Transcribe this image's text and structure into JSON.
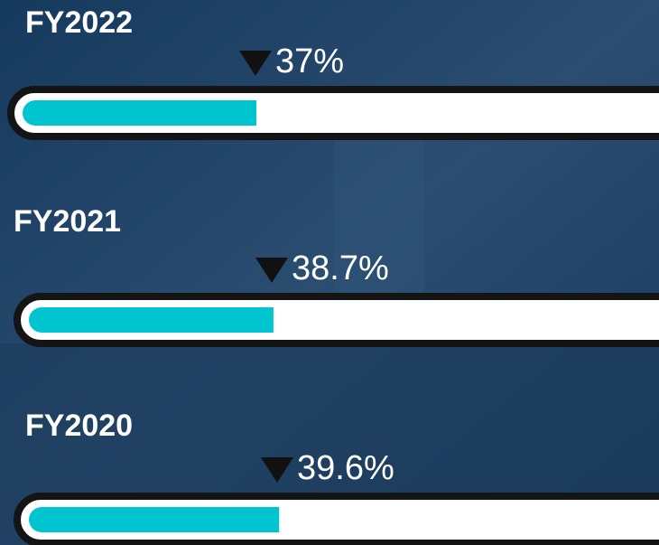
{
  "chart_data": {
    "type": "bar",
    "categories": [
      "FY2022",
      "FY2021",
      "FY2020"
    ],
    "values": [
      37,
      38.7,
      39.6
    ],
    "value_labels": [
      "37%",
      "38.7%",
      "39.6%"
    ],
    "color": "#00c4cf",
    "xlim": [
      0,
      100
    ]
  }
}
